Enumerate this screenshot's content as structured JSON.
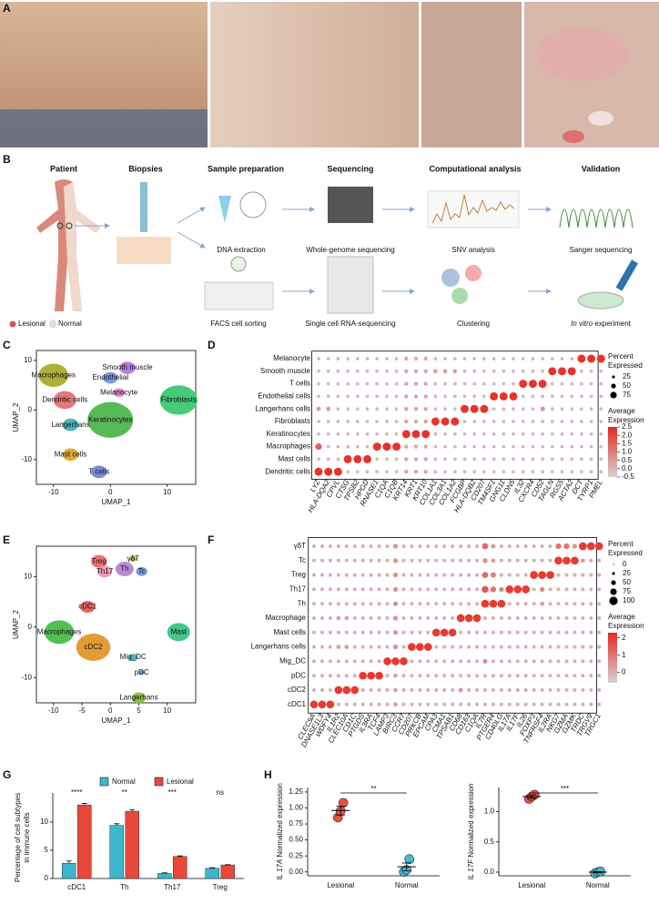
{
  "panels": {
    "labels": [
      "A",
      "B",
      "C",
      "D",
      "E",
      "F",
      "G",
      "H"
    ]
  },
  "workflow": {
    "headers": [
      "Patient",
      "Biopsies",
      "Sample preparation",
      "Sequencing",
      "Computational analysis",
      "Validation"
    ],
    "row1": [
      "DNA extraction",
      "Whole-genome sequencing",
      "SNV analysis",
      "Sanger sequencing"
    ],
    "row2": [
      "FACS cell sorting",
      "Single cell RNA-sequencing",
      "Clustering"
    ],
    "row2_last": {
      "italic": "In vitro",
      "rest": " experiment"
    },
    "legend": [
      "Lesional",
      "Normal"
    ]
  },
  "umap_c": {
    "xlabel": "UMAP_1",
    "ylabel": "UMAP_2",
    "xlim": [
      -13,
      15
    ],
    "ylim": [
      -15,
      12
    ],
    "xticks": [
      -10,
      0,
      10
    ],
    "yticks": [
      -10,
      0,
      10
    ],
    "clusters": [
      {
        "label": "Macrophages",
        "color": "#a5a61f",
        "x": -10,
        "y": 7,
        "r": 2.6
      },
      {
        "label": "Smooth muscle",
        "color": "#b46fd6",
        "x": 3,
        "y": 8.5,
        "r": 1.4
      },
      {
        "label": "Endothelial",
        "color": "#6f8fd8",
        "x": 0,
        "y": 6.5,
        "r": 1.3
      },
      {
        "label": "Melanocyte",
        "color": "#e07ac8",
        "x": 1.5,
        "y": 3.5,
        "r": 1
      },
      {
        "label": "Dendritic cells",
        "color": "#e06a6a",
        "x": -8,
        "y": 2,
        "r": 2
      },
      {
        "label": "Fibroblasts",
        "color": "#33c46a",
        "x": 12,
        "y": 2,
        "r": 3.3
      },
      {
        "label": "Langerhans",
        "color": "#2fb0b8",
        "x": -7,
        "y": -3,
        "r": 1.4
      },
      {
        "label": "Keratinocytes",
        "color": "#43b443",
        "x": 0,
        "y": -2,
        "r": 4
      },
      {
        "label": "Mast cells",
        "color": "#e0a020",
        "x": -7,
        "y": -9,
        "r": 1.4
      },
      {
        "label": "T cells",
        "color": "#6a7fd4",
        "x": -2,
        "y": -12.5,
        "r": 1.4
      }
    ]
  },
  "dot_d": {
    "rows": [
      "Melanocyte",
      "Smooth muscle",
      "T cells",
      "Endothelial cells",
      "Langerhans cells",
      "Fibroblasts",
      "Keratinocytes",
      "Macrophages",
      "Mast cells",
      "Dendritic cells"
    ],
    "genes": [
      "LYZ",
      "HLA-DQA2",
      "CPVL",
      "CTSG",
      "TPSB2",
      "HPGD",
      "RNASE1",
      "C1QA",
      "C1QB",
      "KRT14",
      "KRT1",
      "KRT10",
      "COL1A1",
      "COL3A1",
      "COL1A2",
      "FCGBP",
      "HLA-DQB2",
      "CD207",
      "TM4SF1",
      "GNG11",
      "CLDN5",
      "IL32",
      "CXCR4",
      "CD52",
      "TAGLN",
      "RGS5",
      "ACTA2",
      "DCT",
      "TYRP1",
      "PMEL"
    ],
    "values": [
      [
        0,
        0,
        0,
        0,
        0,
        0,
        0,
        0,
        0,
        0.3,
        0.3,
        0.3,
        0,
        0,
        0,
        0,
        0,
        0,
        0,
        0,
        0,
        0,
        0,
        0,
        0,
        0,
        0,
        2.3,
        2.3,
        2.3
      ],
      [
        0,
        0,
        0,
        0,
        0,
        0,
        0,
        0,
        0,
        0.3,
        0.3,
        0.3,
        0.4,
        0.4,
        0.4,
        0,
        0,
        0,
        0,
        0,
        0,
        0,
        0,
        0,
        2.3,
        2.3,
        2.3,
        0,
        0,
        0
      ],
      [
        0,
        0,
        0,
        0,
        0,
        0,
        0,
        0,
        0,
        0.3,
        0.3,
        0.3,
        0,
        0,
        0,
        0,
        0,
        0,
        0,
        0,
        0,
        2.3,
        2.3,
        2.3,
        0,
        0,
        0,
        0,
        0,
        0
      ],
      [
        0,
        0,
        0,
        0,
        0,
        0,
        0,
        0,
        0,
        0.3,
        0.3,
        0.3,
        0,
        0,
        0,
        0,
        0,
        0,
        2.3,
        2.3,
        2.3,
        0,
        0,
        0,
        0,
        0,
        0,
        0,
        0,
        0
      ],
      [
        0.5,
        0.5,
        0,
        0,
        0,
        0,
        0,
        0,
        0,
        0.3,
        0.3,
        0.3,
        0,
        0,
        0,
        2.3,
        2.3,
        2.3,
        0,
        0,
        0,
        0,
        0,
        0.6,
        0,
        0,
        0,
        0,
        0,
        0
      ],
      [
        0,
        0,
        0,
        0,
        0,
        0,
        0,
        0,
        0,
        0.3,
        0.3,
        0.3,
        2.3,
        2.3,
        2.3,
        0,
        0,
        0,
        0,
        0,
        0,
        0,
        0,
        0,
        0,
        0,
        0,
        0,
        0,
        0
      ],
      [
        0,
        0,
        0,
        0,
        0,
        0,
        0,
        0,
        0,
        2.3,
        2.3,
        2.3,
        0,
        0,
        0,
        0,
        0,
        0,
        0,
        0,
        0,
        0,
        0,
        0,
        0,
        0,
        0,
        0,
        0,
        0
      ],
      [
        1.5,
        0,
        0,
        0,
        0,
        0,
        2.3,
        2.3,
        2.3,
        0.3,
        0.3,
        0.3,
        0,
        0,
        0,
        0,
        0,
        0,
        0,
        0,
        0,
        0,
        0,
        0,
        0,
        0,
        0,
        0,
        0,
        0
      ],
      [
        0,
        0,
        0,
        2.3,
        2.3,
        2.3,
        0,
        0,
        0,
        0.3,
        0.3,
        0.3,
        0,
        0,
        0,
        0,
        0,
        0,
        0,
        0,
        0,
        0,
        0,
        0,
        0,
        0,
        0,
        0,
        0,
        0
      ],
      [
        2.3,
        2.3,
        2.3,
        0,
        0,
        0,
        0,
        0,
        0,
        0.3,
        0.3,
        0.3,
        0,
        0,
        0,
        0,
        0,
        0,
        0,
        0,
        0,
        0,
        0,
        0,
        0,
        0,
        0,
        0,
        0,
        0
      ]
    ],
    "clim": [
      -0.5,
      2.5
    ],
    "size_ticks": [
      25,
      50,
      75
    ],
    "color_ticks": [
      2.5,
      {
        "value": 2,
        "label": "2.0"
      },
      1.5,
      {
        "value": 1,
        "label": "1.0"
      },
      0.5,
      {
        "value": 0,
        "label": "0.0"
      },
      -0.5
    ],
    "size_title": [
      "Percent",
      "Expressed"
    ],
    "color_title": [
      "Average",
      "Expression"
    ]
  },
  "umap_e": {
    "xlabel": "UMAP_1",
    "ylabel": "UMAP_2",
    "xlim": [
      -13,
      15
    ],
    "ylim": [
      -15,
      16
    ],
    "xticks": [
      -10,
      -5,
      0,
      5,
      10
    ],
    "yticks": [
      -10,
      0,
      10
    ],
    "clusters": [
      {
        "label": "Treg",
        "color": "#f06060",
        "x": -2,
        "y": 13,
        "r": 1.4
      },
      {
        "label": "Th17",
        "color": "#f090b0",
        "x": -1,
        "y": 11,
        "r": 1.3
      },
      {
        "label": "γδT",
        "color": "#b0a020",
        "x": 4,
        "y": 13.5,
        "r": 0.6
      },
      {
        "label": "Th",
        "color": "#b080d0",
        "x": 2.5,
        "y": 11.5,
        "r": 1.6
      },
      {
        "label": "Tc",
        "color": "#7090e0",
        "x": 5.5,
        "y": 11,
        "r": 1
      },
      {
        "label": "cDC1",
        "color": "#e05050",
        "x": -4,
        "y": 4,
        "r": 1.3
      },
      {
        "label": "Macrophages",
        "color": "#40b840",
        "x": -9,
        "y": -1,
        "r": 2.6
      },
      {
        "label": "cDC2",
        "color": "#e09020",
        "x": -3,
        "y": -4,
        "r": 3
      },
      {
        "label": "Mig_DC",
        "color": "#30b0b0",
        "x": 4,
        "y": -6,
        "r": 0.8
      },
      {
        "label": "pDC",
        "color": "#5090e0",
        "x": 5.5,
        "y": -9,
        "r": 0.5
      },
      {
        "label": "Langerhans",
        "color": "#80c030",
        "x": 5,
        "y": -14,
        "r": 1.2
      },
      {
        "label": "Mast",
        "color": "#30c080",
        "x": 12,
        "y": -1,
        "r": 2
      }
    ]
  },
  "dot_f": {
    "rows": [
      "γδT",
      "Tc",
      "Treg",
      "Th17",
      "Th",
      "Macrophage",
      "Mast cells",
      "Langerhans cells",
      "Mig_DC",
      "pDC",
      "cDC2",
      "cDC1"
    ],
    "genes": [
      "CLEC9A",
      "DNASE1L3",
      "WDFY4",
      "IL1R2",
      "CLEC10A",
      "CD1C",
      "PTGDS",
      "IL3RA",
      "TCF4",
      "LAMP3",
      "BIRC3",
      "CCR7",
      "CD207",
      "PRKCB",
      "EPCAM",
      "CPA3",
      "CMA1",
      "TPSAB1",
      "CD68",
      "CD163",
      "C1QA",
      "IL7R",
      "PTGER4",
      "CD40LG",
      "IL17A",
      "IL17F",
      "IL26",
      "FOXP3",
      "TNFRSF4",
      "IL2RA",
      "NKG7",
      "GZMA",
      "GZMK",
      "TRDC",
      "TRGV9",
      "TRGC1"
    ],
    "values": [
      [
        0,
        0,
        0,
        0,
        0,
        0,
        0,
        0,
        0,
        0,
        0.5,
        0,
        0,
        0,
        0,
        0,
        0,
        0,
        0,
        0,
        0,
        1.2,
        0.4,
        0,
        0,
        0,
        0,
        0,
        0,
        0,
        1,
        1,
        0.5,
        2,
        2,
        2
      ],
      [
        0,
        0,
        0,
        0,
        0,
        0,
        0,
        0,
        0,
        0,
        0.5,
        0,
        0,
        0,
        0,
        0,
        0,
        0,
        0,
        0,
        0,
        0.6,
        0.3,
        0,
        0,
        0,
        0,
        0,
        0,
        0,
        2,
        2,
        2,
        0.3,
        0,
        0
      ],
      [
        0,
        0,
        0,
        0,
        0,
        0,
        0,
        0,
        0,
        0,
        0.5,
        0,
        0,
        0,
        0,
        0,
        0,
        0,
        0,
        0,
        0,
        1.2,
        0.8,
        0,
        0,
        0,
        0,
        2,
        2,
        2,
        0,
        0,
        0,
        0,
        0,
        0
      ],
      [
        0,
        0,
        0,
        0,
        0,
        0,
        0,
        0,
        0,
        0,
        0.5,
        0,
        0,
        0,
        0,
        0,
        0,
        0,
        0,
        0,
        0,
        1.5,
        1,
        0.6,
        2,
        2,
        2,
        0,
        0.6,
        0,
        0,
        0,
        0,
        0,
        0,
        0
      ],
      [
        0,
        0,
        0,
        0,
        0,
        0,
        0,
        0,
        0,
        0,
        0.5,
        0,
        0,
        0,
        0,
        0,
        0,
        0,
        0,
        0,
        0,
        2,
        2,
        2,
        0,
        0,
        0,
        0,
        0.3,
        0,
        0,
        0,
        0,
        0,
        0,
        0
      ],
      [
        0,
        0,
        0,
        0.3,
        0.3,
        0,
        0,
        0,
        0,
        0,
        0.5,
        0,
        0,
        0,
        0,
        0,
        0,
        0,
        2,
        2,
        2,
        0,
        0,
        0,
        0,
        0,
        0,
        0,
        0,
        0,
        0,
        0,
        0,
        0,
        0,
        0
      ],
      [
        0,
        0,
        0,
        0,
        0,
        0,
        0,
        0,
        0,
        0,
        0.5,
        0,
        0,
        0,
        0,
        2,
        2,
        2,
        0,
        0,
        0,
        0,
        0,
        0,
        0,
        0,
        0,
        0,
        0,
        0,
        0,
        0,
        0,
        0,
        0,
        0
      ],
      [
        0,
        0,
        0,
        0.3,
        0.3,
        0,
        0,
        0,
        0,
        0,
        0.5,
        0,
        2,
        2,
        2,
        0,
        0,
        0,
        0,
        0,
        0,
        0,
        0,
        0,
        0,
        0,
        0,
        0,
        0,
        0,
        0,
        0,
        0,
        0,
        0,
        0
      ],
      [
        0,
        0,
        0,
        0,
        0,
        0,
        0,
        0,
        0,
        2,
        2,
        2,
        0,
        0,
        0,
        0,
        0,
        0,
        0,
        0,
        0,
        0.5,
        0,
        0,
        0,
        0,
        0,
        0,
        0,
        0,
        0,
        0,
        0,
        0,
        0,
        0
      ],
      [
        0,
        0,
        0,
        0,
        0,
        0,
        2,
        2,
        2,
        0,
        0.3,
        0,
        0,
        0,
        0,
        0,
        0,
        0,
        0,
        0,
        0,
        0,
        0,
        0,
        0,
        0,
        0,
        0,
        0,
        0,
        0,
        0,
        0,
        0,
        0,
        0
      ],
      [
        0,
        0,
        0,
        2,
        2,
        2,
        0,
        0,
        0,
        0,
        0.3,
        0,
        0,
        0,
        0,
        0,
        0,
        0,
        0.4,
        0,
        0,
        0,
        0,
        0,
        0,
        0,
        0,
        0,
        0,
        0,
        0,
        0,
        0,
        0,
        0,
        0
      ],
      [
        2,
        2,
        2,
        0,
        0,
        0,
        0,
        0,
        0,
        0,
        0.3,
        0,
        0,
        0,
        0,
        0,
        0,
        0,
        0,
        0,
        0,
        0,
        0,
        0,
        0,
        0,
        0,
        0,
        0,
        0,
        0,
        0,
        0,
        0,
        0,
        0
      ]
    ],
    "clim": [
      -0.6,
      2.3
    ],
    "size_ticks": [
      0,
      25,
      50,
      75,
      100
    ],
    "color_ticks": [
      2,
      1,
      0
    ],
    "size_title": [
      "Percent",
      "Expressed"
    ],
    "color_title": [
      "Average",
      "Expression"
    ]
  },
  "bar_g": {
    "ylabel": [
      "Percentage of cell subtypes",
      "in immune cells"
    ],
    "categories": [
      "cDC1",
      "Th",
      "Th17",
      "Treg"
    ],
    "series": [
      {
        "name": "Normal",
        "color": "#3db7cc",
        "values": [
          2.7,
          9.4,
          0.9,
          1.8
        ],
        "errors": [
          0.4,
          0.3,
          0.1,
          0.1
        ]
      },
      {
        "name": "Lesional",
        "color": "#e8483a",
        "values": [
          13,
          11.9,
          3.9,
          2.4
        ],
        "errors": [
          0.3,
          0.3,
          0.1,
          0.05
        ]
      }
    ],
    "significance": [
      "****",
      "**",
      "***",
      "ns"
    ],
    "ylim": [
      0,
      14.5
    ],
    "yticks": [
      0,
      5,
      10
    ]
  },
  "dots_h": [
    {
      "gene": "IL 17A",
      "ylabel": " Normalized expression",
      "categories": [
        "Lesional",
        "Normal"
      ],
      "colors": [
        "#e8483a",
        "#3db7cc"
      ],
      "points": [
        [
          0.85,
          0.95,
          1.08
        ],
        [
          0,
          0.03,
          0.2
        ]
      ],
      "means": [
        0.96,
        0.08
      ],
      "errors": [
        0.07,
        0.06
      ],
      "significance": "**",
      "ylim": [
        -0.06,
        1.32
      ],
      "yticks": [
        {
          "value": 0,
          "label": "0.00"
        },
        0.25,
        {
          "value": 0.5,
          "label": "0.50"
        },
        0.75,
        {
          "value": 1,
          "label": "1.00"
        },
        1.25
      ]
    },
    {
      "gene": "IL 17F",
      "ylabel": " Normalized expression",
      "categories": [
        "Lesional",
        "Normal"
      ],
      "colors": [
        "#e8483a",
        "#3db7cc"
      ],
      "points": [
        [
          1.21,
          1.25,
          1.28
        ],
        [
          -0.02,
          0,
          0.01
        ]
      ],
      "means": [
        1.25,
        0
      ],
      "errors": [
        0.03,
        0.01
      ],
      "significance": "***",
      "ylim": [
        -0.06,
        1.4
      ],
      "yticks": [
        {
          "value": 0,
          "label": "0.0"
        },
        0.5,
        {
          "value": 1,
          "label": "1.0"
        }
      ]
    }
  ]
}
